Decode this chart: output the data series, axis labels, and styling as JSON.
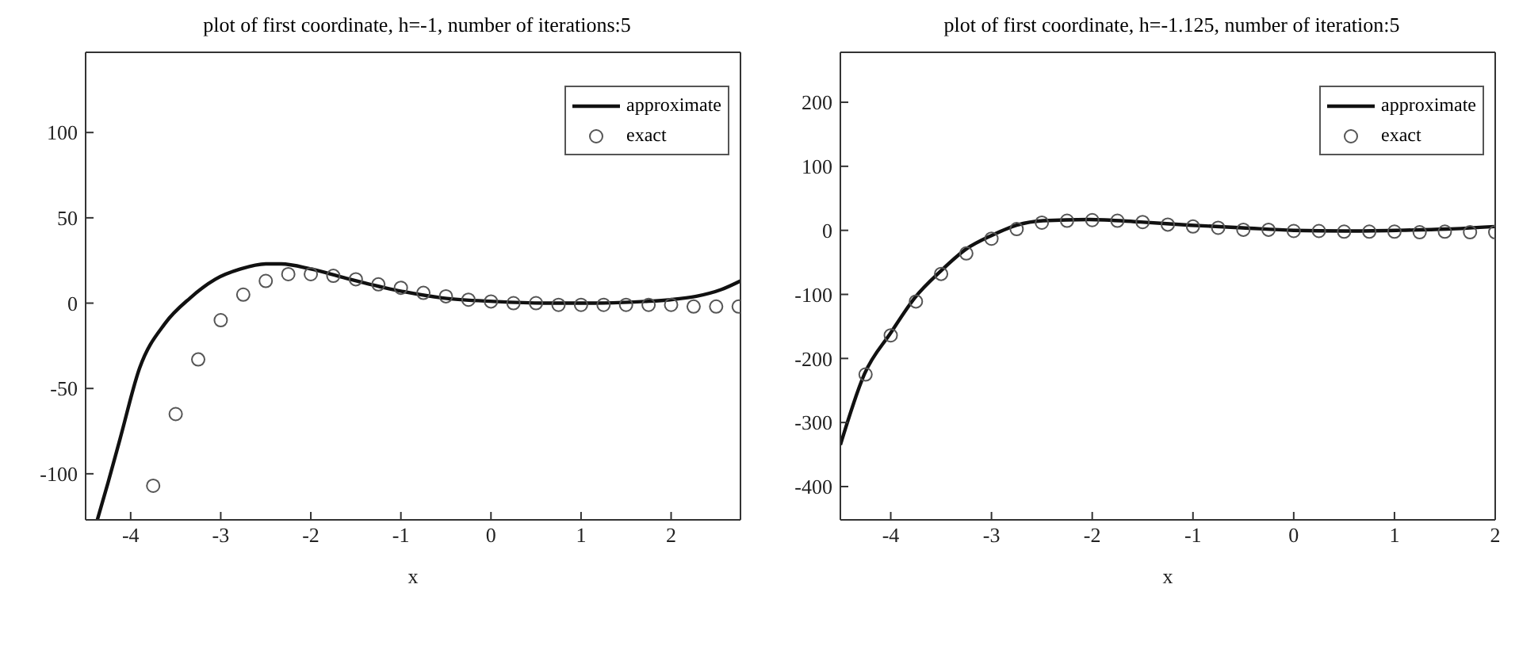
{
  "chart_data": [
    {
      "type": "line",
      "title": "plot of first coordinate, h=-1, number of iterations:5",
      "xlabel": "x",
      "xlim": [
        -4.5,
        2.77
      ],
      "xticks": [
        -4,
        -3,
        -2,
        -1,
        0,
        1,
        2
      ],
      "ylim": [
        -127,
        147
      ],
      "yticks": [
        -100,
        -50,
        0,
        50,
        100
      ],
      "legend": "top right",
      "series": [
        {
          "name": "approximate",
          "color": "#111111",
          "marker": "none",
          "line_style": "solid",
          "x": [
            -4.37,
            -4.25,
            -4.12,
            -3.9,
            -3.62,
            -3.34,
            -3.06,
            -2.78,
            -2.5,
            -2.33,
            -2,
            -1.64,
            -1.09,
            -0.53,
            0.03,
            0.59,
            1.15,
            1.71,
            1.99,
            2.28,
            2.56,
            2.77
          ],
          "values": [
            -127,
            -105,
            -80,
            -38,
            -12,
            3,
            14,
            20,
            23,
            23,
            20,
            15,
            8,
            3,
            1,
            0,
            0,
            1,
            2,
            4,
            8,
            13
          ]
        },
        {
          "name": "exact",
          "type": "scatter",
          "color": "#555555",
          "marker": "circle",
          "x": [
            -3.75,
            -3.5,
            -3.25,
            -3,
            -2.75,
            -2.5,
            -2.25,
            -2,
            -1.75,
            -1.5,
            -1.25,
            -1,
            -0.75,
            -0.5,
            -0.25,
            0,
            0.25,
            0.5,
            0.75,
            1,
            1.25,
            1.5,
            1.75,
            2,
            2.25,
            2.5,
            2.75
          ],
          "values": [
            -107,
            -65,
            -33,
            -10,
            5,
            13,
            17,
            17,
            16,
            14,
            11,
            9,
            6,
            4,
            2,
            1,
            0,
            0,
            -1,
            -1,
            -1,
            -1,
            -1,
            -1,
            -2,
            -2,
            -2
          ]
        }
      ]
    },
    {
      "type": "line",
      "title": "plot of first coordinate, h=-1.125, number of iteration:5",
      "xlabel": "x",
      "xlim": [
        -4.5,
        2
      ],
      "xticks": [
        -4,
        -3,
        -2,
        -1,
        0,
        1,
        2
      ],
      "ylim": [
        -452,
        278
      ],
      "yticks": [
        -400,
        -300,
        -200,
        -100,
        0,
        100,
        200
      ],
      "legend": "top right",
      "series": [
        {
          "name": "approximate",
          "color": "#111111",
          "marker": "none",
          "line_style": "solid",
          "x": [
            -4.5,
            -4.26,
            -4,
            -3.76,
            -3.5,
            -3.25,
            -3,
            -2.75,
            -2.49,
            -2.03,
            -1.52,
            -1.02,
            -0.51,
            0,
            0.51,
            1.02,
            1.52,
            2
          ],
          "values": [
            -335,
            -224,
            -160,
            -105,
            -63,
            -29,
            -8,
            8,
            15,
            17,
            13,
            8,
            4,
            0,
            -1,
            0,
            2,
            6
          ]
        },
        {
          "name": "exact",
          "type": "scatter",
          "color": "#555555",
          "marker": "circle",
          "x": [
            -4.25,
            -4,
            -3.75,
            -3.5,
            -3.25,
            -3,
            -2.75,
            -2.5,
            -2.25,
            -2,
            -1.75,
            -1.5,
            -1.25,
            -1,
            -0.75,
            -0.5,
            -0.25,
            0,
            0.25,
            0.5,
            0.75,
            1,
            1.25,
            1.5,
            1.75,
            2
          ],
          "values": [
            -225,
            -164,
            -111,
            -68,
            -36,
            -13,
            2,
            12,
            15,
            16,
            15,
            13,
            9,
            6,
            4,
            1,
            1,
            -1,
            -1,
            -2,
            -2,
            -2,
            -3,
            -2,
            -3,
            -3
          ]
        }
      ]
    }
  ]
}
